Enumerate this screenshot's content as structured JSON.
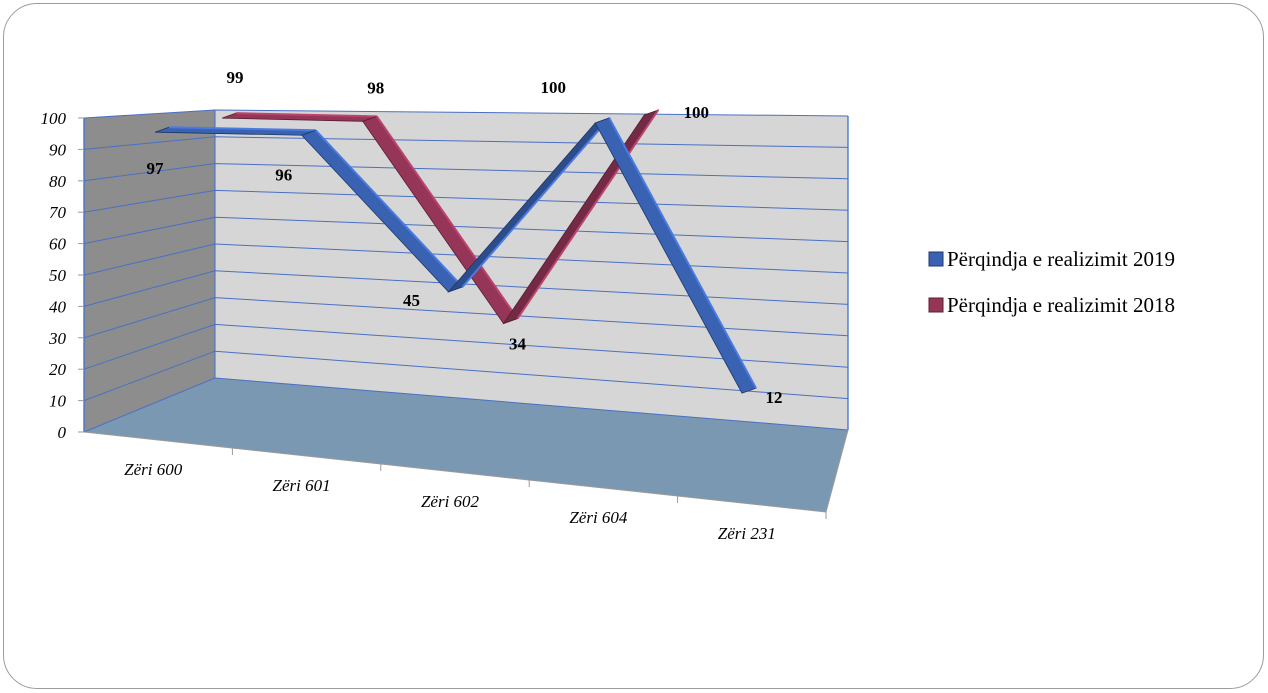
{
  "chart_data": {
    "type": "line",
    "style": "3d-ribbon",
    "categories": [
      "Zëri 600",
      "Zëri 601",
      "Zëri 602",
      "Zëri 604",
      "Zëri 231"
    ],
    "series": [
      {
        "name": "Përqindja e realizimit  2019",
        "values": [
          97,
          96,
          45,
          100,
          12
        ],
        "color": "#3a62b3"
      },
      {
        "name": "Përqindja e realizimit  2018",
        "values": [
          99,
          98,
          34,
          100,
          null
        ],
        "color": "#953659"
      }
    ],
    "y_ticks": [
      "0",
      "10",
      "20",
      "30",
      "40",
      "50",
      "60",
      "70",
      "80",
      "90",
      "100"
    ],
    "ylim": [
      0,
      100
    ],
    "grid": true,
    "legend": "right",
    "colors": {
      "back_wall": "#d6d6d6",
      "side_wall": "#8d8d8d",
      "floor": "#7b98b3",
      "axis": "#3f6fd0"
    }
  }
}
